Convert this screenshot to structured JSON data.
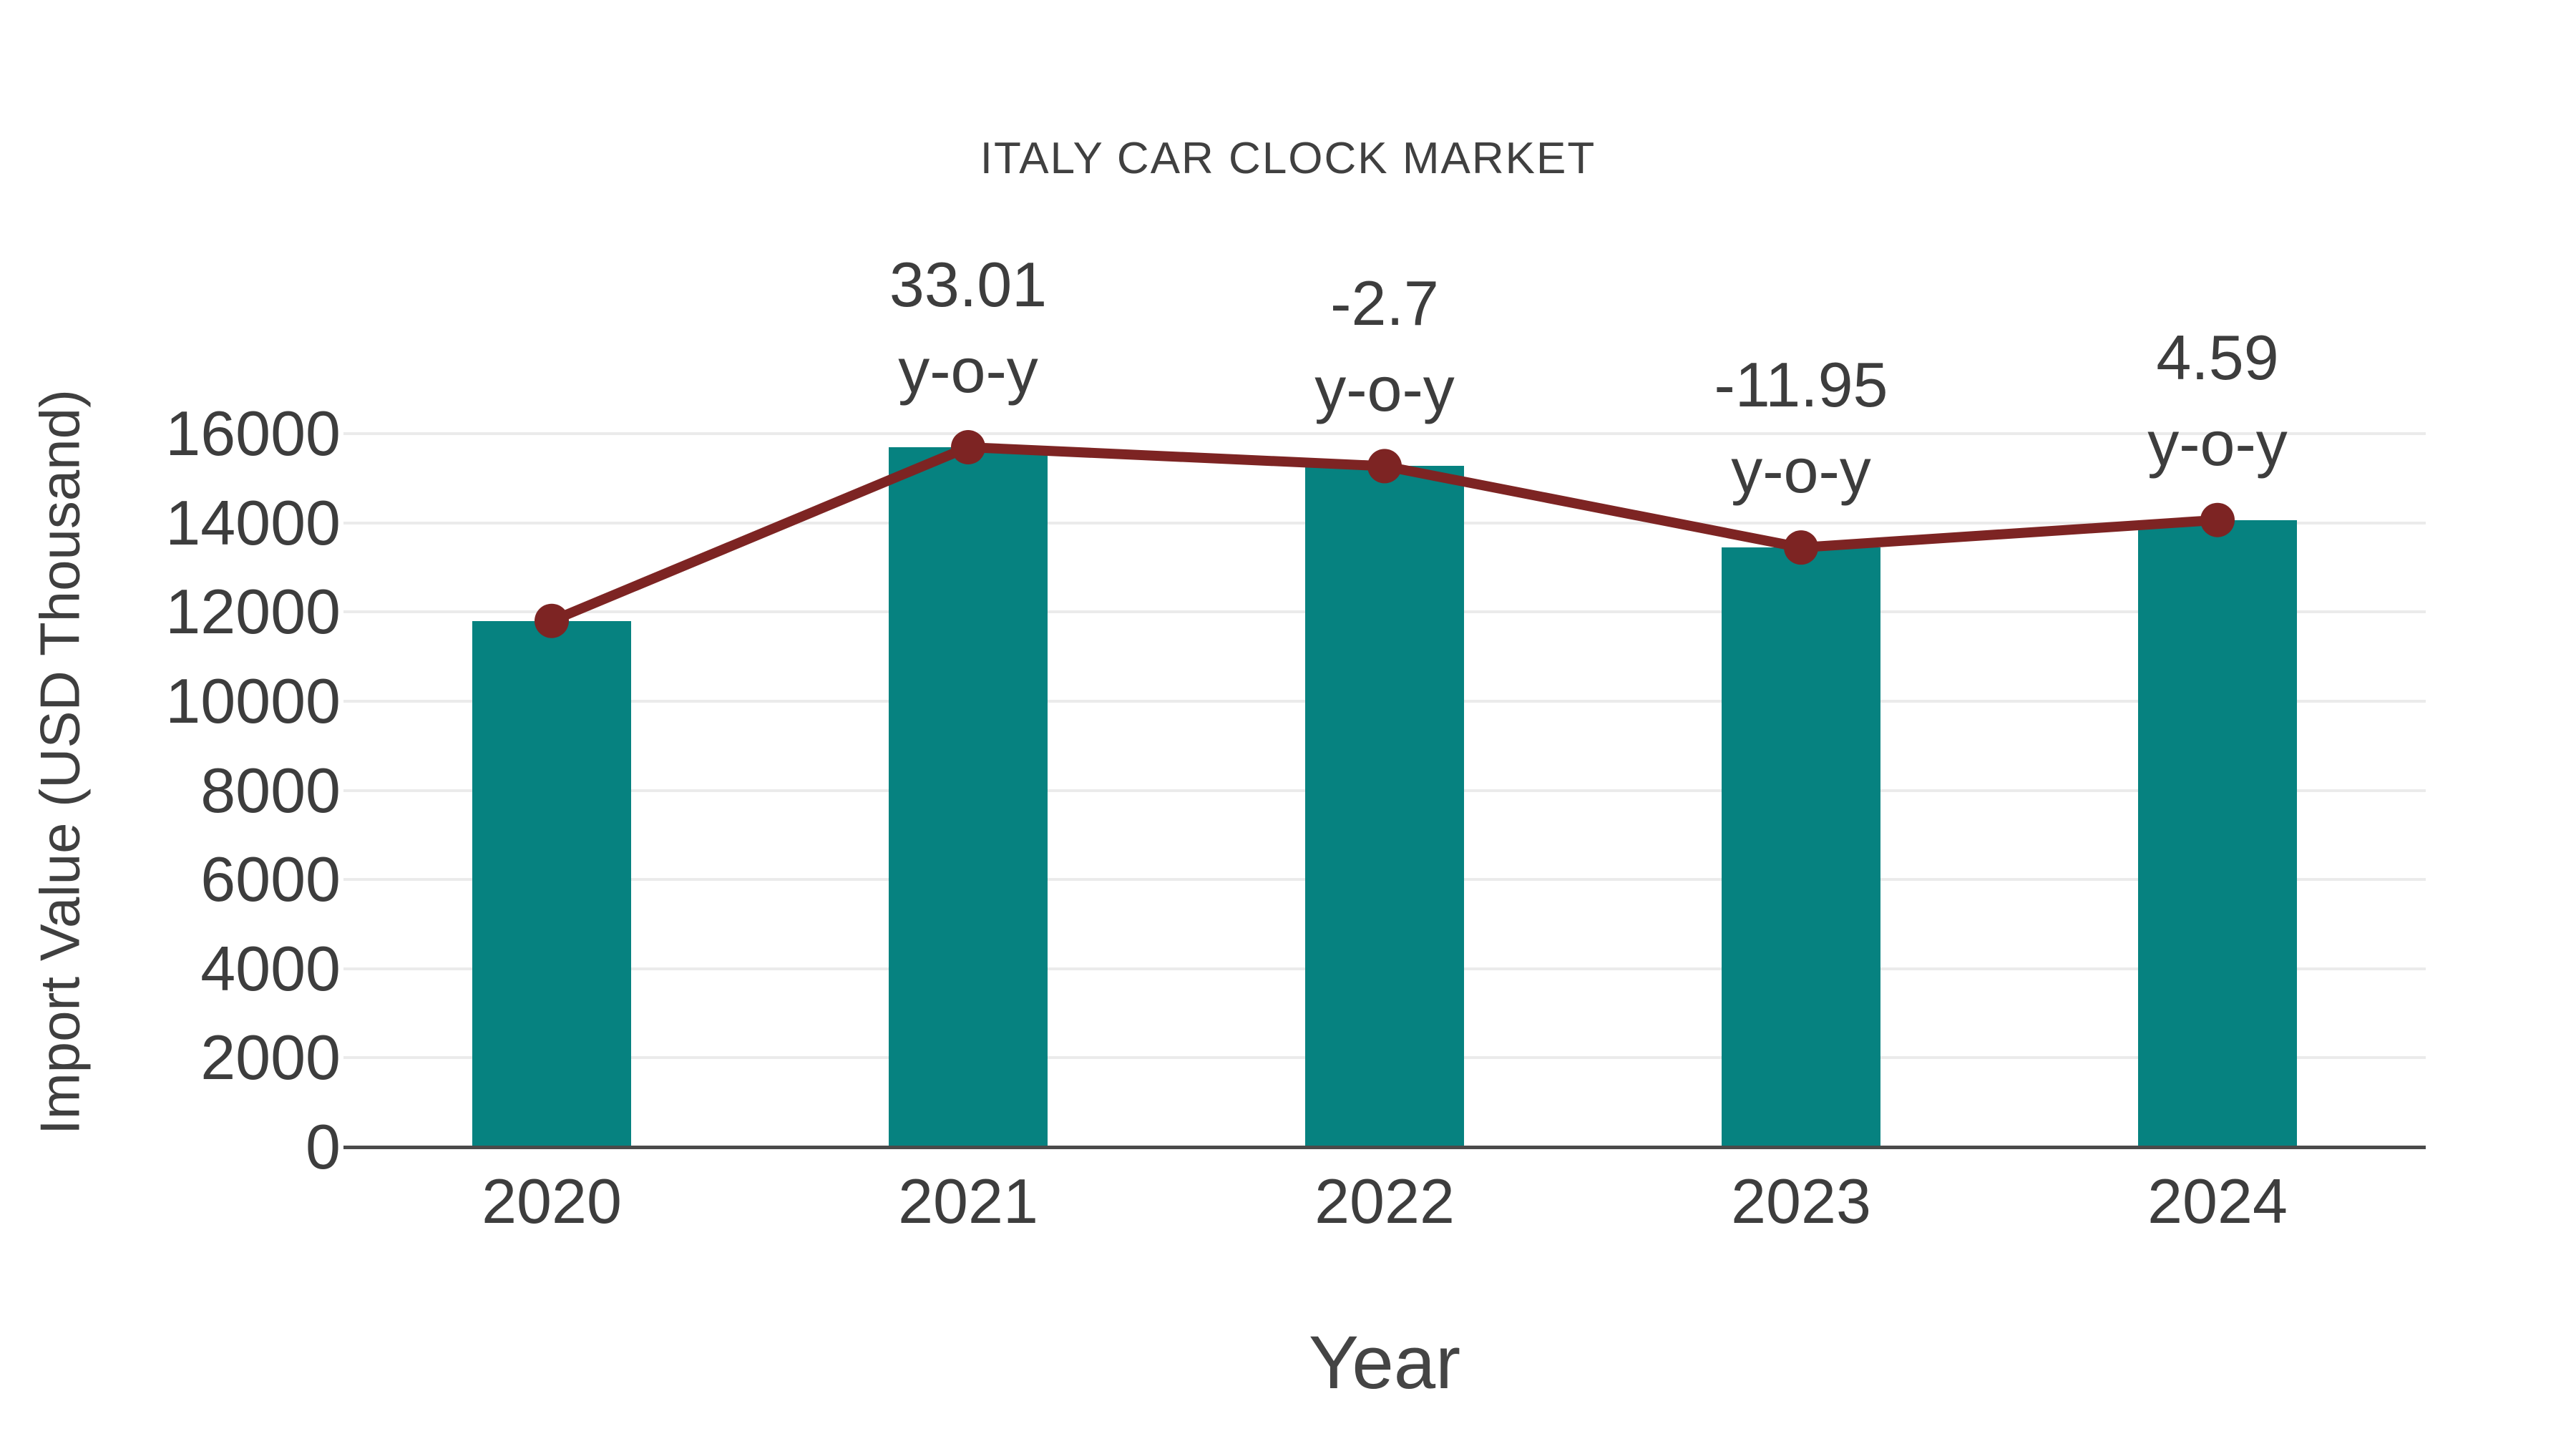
{
  "chart_data": {
    "type": "bar",
    "title": "ITALY CAR CLOCK MARKET",
    "xlabel": "Year",
    "ylabel": "Import Value (USD Thousand)",
    "categories": [
      "2020",
      "2021",
      "2022",
      "2023",
      "2024"
    ],
    "series": [
      {
        "name": "import-value-bars",
        "type": "bar",
        "values": [
          11800,
          15695,
          15271,
          13446,
          14063
        ]
      },
      {
        "name": "import-value-trend-line",
        "type": "line",
        "values": [
          11800,
          15695,
          15271,
          13446,
          14063
        ]
      }
    ],
    "annotations": [
      {
        "category": "2021",
        "value": "33.01",
        "suffix": "y-o-y"
      },
      {
        "category": "2022",
        "value": "-2.7",
        "suffix": "y-o-y"
      },
      {
        "category": "2023",
        "value": "-11.95",
        "suffix": "y-o-y"
      },
      {
        "category": "2024",
        "value": "4.59",
        "suffix": "y-o-y"
      }
    ],
    "ylim": [
      0,
      16000
    ],
    "ytick_step": 2000,
    "grid": true,
    "legend_position": "none",
    "colors": {
      "bar": "#068280",
      "line": "#7d2423",
      "marker": "#7d2423",
      "gridline": "#ebebeb",
      "axis_line": "#4a4a4a",
      "tick_text": "#3d3d3d",
      "title_text": "#404040"
    }
  }
}
